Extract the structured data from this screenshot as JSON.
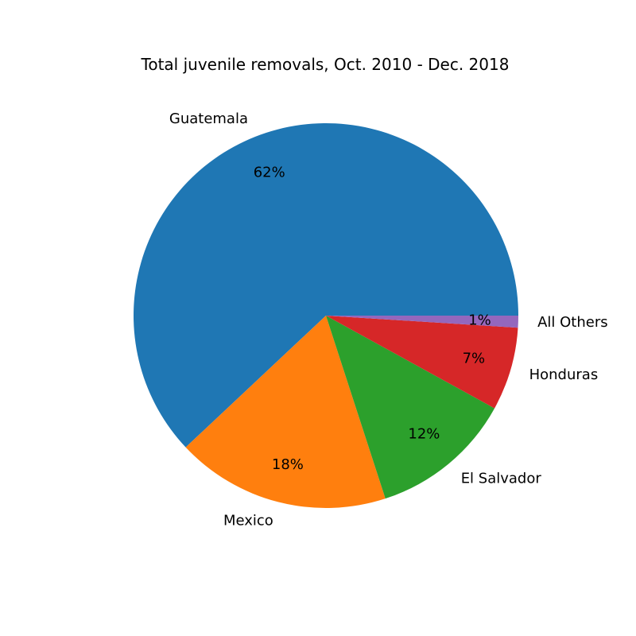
{
  "chart_data": {
    "type": "pie",
    "title": "Total juvenile removals, Oct. 2010 - Dec. 2018",
    "slices": [
      {
        "label": "Guatemala",
        "value": 62,
        "pct_label": "62%",
        "color": "#1f77b4"
      },
      {
        "label": "Mexico",
        "value": 18,
        "pct_label": "18%",
        "color": "#ff7f0e"
      },
      {
        "label": "El Salvador",
        "value": 12,
        "pct_label": "12%",
        "color": "#2ca02c"
      },
      {
        "label": "Honduras",
        "value": 7,
        "pct_label": "7%",
        "color": "#d62728"
      },
      {
        "label": "All Others",
        "value": 1,
        "pct_label": "1%",
        "color": "#9467bd"
      }
    ],
    "start_angle_deg": 0,
    "direction": "counterclockwise",
    "legend": "none"
  }
}
